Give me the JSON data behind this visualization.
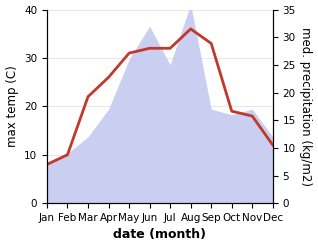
{
  "months": [
    "Jan",
    "Feb",
    "Mar",
    "Apr",
    "May",
    "Jun",
    "Jul",
    "Aug",
    "Sep",
    "Oct",
    "Nov",
    "Dec"
  ],
  "temperature": [
    8,
    10,
    22,
    26,
    31,
    32,
    32,
    36,
    33,
    19,
    18,
    12
  ],
  "precipitation": [
    7,
    9,
    12,
    17,
    26,
    32,
    25,
    36,
    17,
    16,
    17,
    12
  ],
  "temp_color": "#c0392b",
  "precip_color": "#c5caf0",
  "background_color": "#ffffff",
  "ylabel_left": "max temp (C)",
  "ylabel_right": "med. precipitation (kg/m2)",
  "xlabel": "date (month)",
  "ylim_left": [
    0,
    40
  ],
  "ylim_right": [
    0,
    35
  ],
  "yticks_left": [
    0,
    10,
    20,
    30,
    40
  ],
  "yticks_right": [
    0,
    5,
    10,
    15,
    20,
    25,
    30,
    35
  ],
  "temp_linewidth": 2.0,
  "xlabel_fontsize": 9,
  "ylabel_fontsize": 8.5,
  "tick_fontsize": 7.5
}
